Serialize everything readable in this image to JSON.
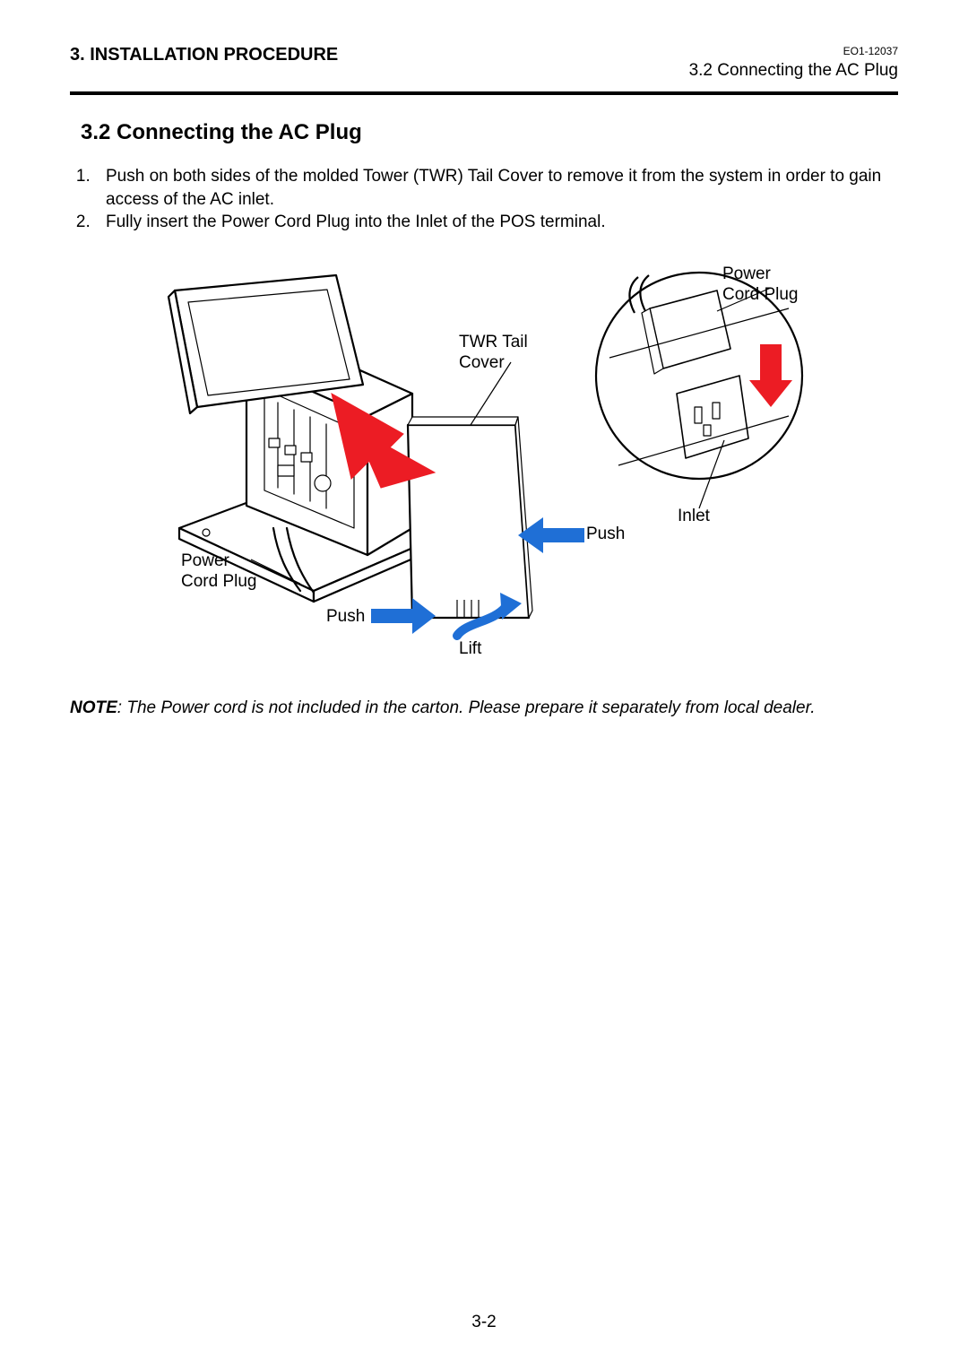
{
  "header": {
    "chapter": "3. INSTALLATION PROCEDURE",
    "doc_id": "EO1-12037",
    "subtitle": "3.2 Connecting the AC Plug"
  },
  "section": {
    "title": "3.2 Connecting the AC Plug",
    "steps": [
      "Push on both sides of the molded Tower (TWR) Tail Cover to remove it from the system in order to gain access of the AC inlet.",
      "Fully insert the Power Cord Plug into the Inlet of the POS terminal."
    ]
  },
  "figure": {
    "labels": {
      "twr_tail_cover": "TWR Tail\nCover",
      "power_cord_plug_top": "Power\nCord Plug",
      "inlet": "Inlet",
      "push_right": "Push",
      "power_cord_plug_left": "Power\nCord Plug",
      "push_left": "Push",
      "lift": "Lift"
    },
    "colors": {
      "stroke": "#000000",
      "fill_bg": "#ffffff",
      "arrow_red": "#ec1c24",
      "arrow_blue": "#1f6fd6",
      "arrow_blue_light": "#3b8be6"
    },
    "line_width_main": 2.2,
    "line_width_thin": 1.2
  },
  "note": {
    "label": "NOTE",
    "text": ": The Power cord is not included in the carton. Please prepare it separately from local dealer."
  },
  "page_number": "3-2"
}
